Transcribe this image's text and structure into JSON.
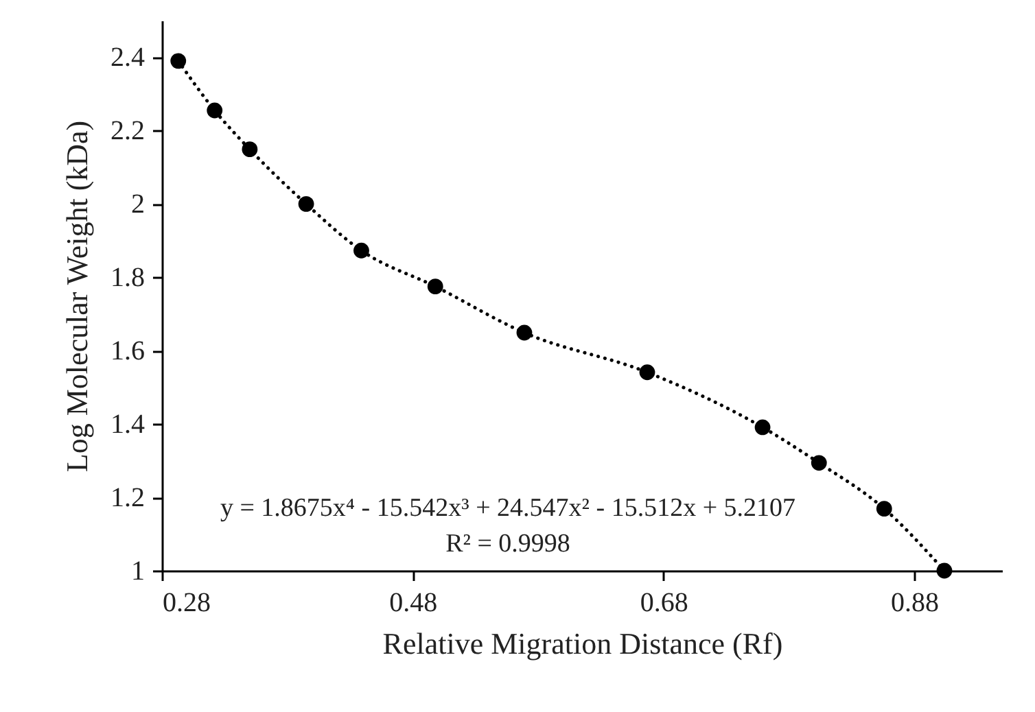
{
  "chart_data": {
    "type": "scatter",
    "xlabel": "Relative Migration Distance (Rf)",
    "ylabel": "Log Molecular Weight (kDa)",
    "xlim": [
      0.28,
      0.95
    ],
    "ylim": [
      1,
      2.5
    ],
    "xticks": [
      0.28,
      0.48,
      0.68,
      0.88
    ],
    "yticks": [
      1,
      1.2,
      1.4,
      1.6,
      1.8,
      2,
      2.2,
      2.4
    ],
    "annotations": [
      "y = 1.8675x⁴ - 15.542x³ + 24.547x² - 15.512x + 5.2107",
      "R² = 0.9998"
    ],
    "series": [
      {
        "type": "line",
        "color": "#000000",
        "line_style": "dotted",
        "x": [
          0.293,
          0.322,
          0.35,
          0.395,
          0.439,
          0.498,
          0.569,
          0.667,
          0.759,
          0.804,
          0.856,
          0.904
        ],
        "values": [
          2.39,
          2.255,
          2.149,
          2.0,
          1.873,
          1.775,
          1.649,
          1.541,
          1.391,
          1.294,
          1.169,
          1.0
        ]
      },
      {
        "type": "scatter",
        "color": "#000000",
        "marker": "circle",
        "x": [
          0.293,
          0.322,
          0.35,
          0.395,
          0.439,
          0.498,
          0.569,
          0.667,
          0.759,
          0.804,
          0.856,
          0.904
        ],
        "values": [
          2.39,
          2.255,
          2.149,
          2.0,
          1.873,
          1.775,
          1.649,
          1.541,
          1.391,
          1.294,
          1.169,
          1.0
        ]
      }
    ]
  }
}
